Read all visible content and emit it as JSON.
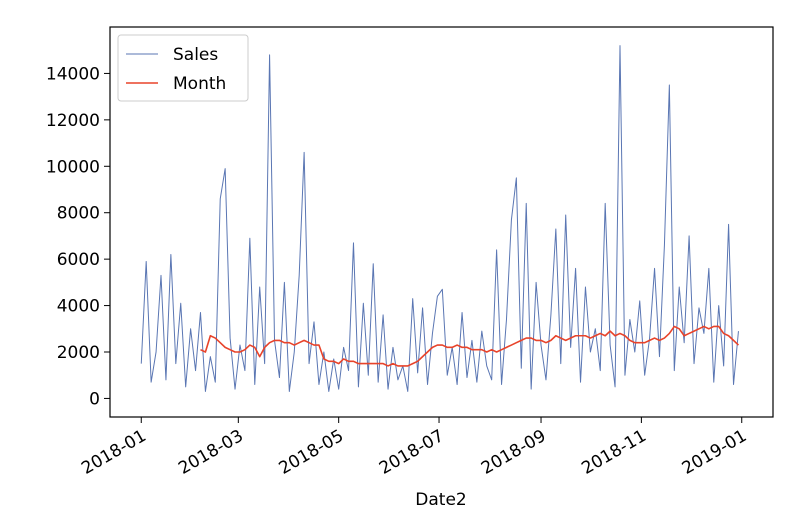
{
  "chart_data": {
    "type": "line",
    "x_label": "Date2",
    "x": [
      "2018-01-01",
      "2018-01-04",
      "2018-01-07",
      "2018-01-10",
      "2018-01-13",
      "2018-01-16",
      "2018-01-19",
      "2018-01-22",
      "2018-01-25",
      "2018-01-28",
      "2018-01-31",
      "2018-02-03",
      "2018-02-06",
      "2018-02-09",
      "2018-02-12",
      "2018-02-15",
      "2018-02-18",
      "2018-02-21",
      "2018-02-24",
      "2018-02-27",
      "2018-03-02",
      "2018-03-05",
      "2018-03-08",
      "2018-03-11",
      "2018-03-14",
      "2018-03-17",
      "2018-03-20",
      "2018-03-23",
      "2018-03-26",
      "2018-03-29",
      "2018-04-01",
      "2018-04-04",
      "2018-04-07",
      "2018-04-10",
      "2018-04-13",
      "2018-04-16",
      "2018-04-19",
      "2018-04-22",
      "2018-04-25",
      "2018-04-28",
      "2018-05-01",
      "2018-05-04",
      "2018-05-07",
      "2018-05-10",
      "2018-05-13",
      "2018-05-16",
      "2018-05-19",
      "2018-05-22",
      "2018-05-25",
      "2018-05-28",
      "2018-05-31",
      "2018-06-03",
      "2018-06-06",
      "2018-06-09",
      "2018-06-12",
      "2018-06-15",
      "2018-06-18",
      "2018-06-21",
      "2018-06-24",
      "2018-06-27",
      "2018-06-30",
      "2018-07-03",
      "2018-07-06",
      "2018-07-09",
      "2018-07-12",
      "2018-07-15",
      "2018-07-18",
      "2018-07-21",
      "2018-07-24",
      "2018-07-27",
      "2018-07-30",
      "2018-08-02",
      "2018-08-05",
      "2018-08-08",
      "2018-08-11",
      "2018-08-14",
      "2018-08-17",
      "2018-08-20",
      "2018-08-23",
      "2018-08-26",
      "2018-08-29",
      "2018-09-01",
      "2018-09-04",
      "2018-09-07",
      "2018-09-10",
      "2018-09-13",
      "2018-09-16",
      "2018-09-19",
      "2018-09-22",
      "2018-09-25",
      "2018-09-28",
      "2018-10-01",
      "2018-10-04",
      "2018-10-07",
      "2018-10-10",
      "2018-10-13",
      "2018-10-16",
      "2018-10-19",
      "2018-10-22",
      "2018-10-25",
      "2018-10-28",
      "2018-10-31",
      "2018-11-03",
      "2018-11-06",
      "2018-11-09",
      "2018-11-12",
      "2018-11-15",
      "2018-11-18",
      "2018-11-21",
      "2018-11-24",
      "2018-11-27",
      "2018-11-30",
      "2018-12-03",
      "2018-12-06",
      "2018-12-09",
      "2018-12-12",
      "2018-12-15",
      "2018-12-18",
      "2018-12-21",
      "2018-12-24",
      "2018-12-27",
      "2018-12-30"
    ],
    "series": [
      {
        "name": "Sales",
        "color": "#5a76b3",
        "values": [
          1500,
          5900,
          700,
          2000,
          5300,
          800,
          6200,
          1500,
          4100,
          500,
          3000,
          1200,
          3700,
          300,
          1800,
          700,
          8600,
          9900,
          2600,
          400,
          2300,
          1200,
          6900,
          600,
          4800,
          1500,
          14800,
          2500,
          900,
          5000,
          300,
          2000,
          5300,
          10600,
          1500,
          3300,
          600,
          2000,
          300,
          1700,
          400,
          2200,
          1200,
          6700,
          500,
          4100,
          1000,
          5800,
          700,
          3600,
          400,
          2200,
          800,
          1400,
          300,
          4300,
          1100,
          3900,
          600,
          2800,
          4400,
          4700,
          1000,
          2200,
          600,
          3700,
          900,
          2500,
          700,
          2900,
          1400,
          800,
          6400,
          600,
          3400,
          7700,
          9500,
          1300,
          8400,
          400,
          5000,
          2300,
          800,
          3600,
          7300,
          1500,
          7900,
          2200,
          5600,
          700,
          4800,
          2000,
          3000,
          1200,
          8400,
          2300,
          500,
          15200,
          1000,
          3400,
          2000,
          4200,
          1000,
          2600,
          5600,
          1800,
          6600,
          13500,
          1200,
          4800,
          2400,
          7000,
          1500,
          3900,
          2800,
          5600,
          700,
          4000,
          1400,
          7500,
          600,
          2900
        ]
      },
      {
        "name": "Month",
        "color": "#e8432a",
        "values": [
          null,
          null,
          null,
          null,
          null,
          null,
          null,
          null,
          null,
          null,
          null,
          null,
          2100,
          2000,
          2700,
          2600,
          2400,
          2200,
          2100,
          2000,
          2000,
          2100,
          2300,
          2200,
          1800,
          2200,
          2400,
          2500,
          2500,
          2400,
          2400,
          2300,
          2400,
          2500,
          2400,
          2300,
          2300,
          1700,
          1600,
          1600,
          1500,
          1700,
          1600,
          1600,
          1500,
          1500,
          1500,
          1500,
          1500,
          1500,
          1400,
          1500,
          1400,
          1400,
          1400,
          1500,
          1600,
          1800,
          2000,
          2200,
          2300,
          2300,
          2200,
          2200,
          2300,
          2200,
          2200,
          2100,
          2100,
          2100,
          2000,
          2100,
          2000,
          2100,
          2200,
          2300,
          2400,
          2500,
          2600,
          2600,
          2500,
          2500,
          2400,
          2500,
          2700,
          2600,
          2500,
          2600,
          2700,
          2700,
          2700,
          2600,
          2700,
          2800,
          2700,
          2900,
          2700,
          2800,
          2700,
          2500,
          2400,
          2400,
          2400,
          2500,
          2600,
          2500,
          2600,
          2800,
          3100,
          3000,
          2700,
          2800,
          2900,
          3000,
          3100,
          3000,
          3100,
          3100,
          2800,
          2700,
          2500,
          2300
        ]
      }
    ],
    "xlim": [
      "2017-12-13",
      "2019-01-20"
    ],
    "xticks": [
      {
        "value": "2018-01-01",
        "label": "2018-01"
      },
      {
        "value": "2018-03-01",
        "label": "2018-03"
      },
      {
        "value": "2018-05-01",
        "label": "2018-05"
      },
      {
        "value": "2018-07-01",
        "label": "2018-07"
      },
      {
        "value": "2018-09-01",
        "label": "2018-09"
      },
      {
        "value": "2018-11-01",
        "label": "2018-11"
      },
      {
        "value": "2019-01-01",
        "label": "2019-01"
      }
    ],
    "ylim": [
      -800,
      16000
    ],
    "yticks": [
      0,
      2000,
      4000,
      6000,
      8000,
      10000,
      12000,
      14000
    ],
    "grid": false,
    "legend_position": "upper-left"
  }
}
